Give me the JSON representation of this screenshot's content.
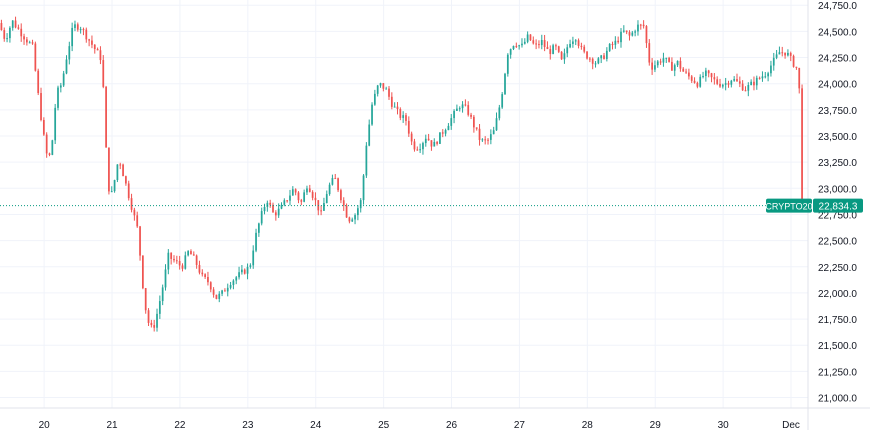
{
  "colors": {
    "up": "#26a69a",
    "down": "#ef5350",
    "grid": "#f0f3fa",
    "axis_text": "#131722",
    "price_line": "#089981",
    "tag_bg": "#089981",
    "tag_text": "#ffffff"
  },
  "chart_data": {
    "type": "candlestick",
    "symbol": "CRYPTO20",
    "last_price": 22834.3,
    "last_price_label": "22,834.3",
    "ylim": [
      20900,
      24800
    ],
    "y_ticks": [
      21000,
      21250,
      21500,
      21750,
      22000,
      22250,
      22500,
      22750,
      23000,
      23250,
      23500,
      23750,
      24000,
      24250,
      24500,
      24750
    ],
    "y_tick_labels": [
      "21,000.0",
      "21,250.0",
      "21,500.0",
      "21,750.0",
      "22,000.0",
      "22,250.0",
      "22,500.0",
      "22,750.0",
      "23,000.0",
      "23,250.0",
      "23,500.0",
      "23,750.0",
      "24,000.0",
      "24,250.0",
      "24,500.0",
      "24,750.0"
    ],
    "x_range": [
      19.35,
      31.25
    ],
    "x_ticks": [
      20,
      21,
      22,
      23,
      24,
      25,
      26,
      27,
      28,
      29,
      30,
      31
    ],
    "x_tick_labels": [
      "20",
      "21",
      "22",
      "23",
      "24",
      "25",
      "26",
      "27",
      "28",
      "29",
      "30",
      "Dec"
    ],
    "grid": true,
    "ohlc_keyframes": [
      [
        19.35,
        24580
      ],
      [
        19.45,
        24420
      ],
      [
        19.55,
        24600
      ],
      [
        19.7,
        24470
      ],
      [
        19.85,
        24350
      ],
      [
        19.95,
        23800
      ],
      [
        20.05,
        23330
      ],
      [
        20.12,
        23300
      ],
      [
        20.2,
        23900
      ],
      [
        20.28,
        24000
      ],
      [
        20.35,
        24250
      ],
      [
        20.45,
        24550
      ],
      [
        20.55,
        24550
      ],
      [
        20.65,
        24450
      ],
      [
        20.75,
        24350
      ],
      [
        20.85,
        24250
      ],
      [
        20.9,
        23900
      ],
      [
        20.95,
        23100
      ],
      [
        21.0,
        22900
      ],
      [
        21.05,
        23050
      ],
      [
        21.12,
        23300
      ],
      [
        21.2,
        23100
      ],
      [
        21.3,
        22850
      ],
      [
        21.4,
        22600
      ],
      [
        21.5,
        21900
      ],
      [
        21.58,
        21650
      ],
      [
        21.65,
        21700
      ],
      [
        21.75,
        22000
      ],
      [
        21.85,
        22350
      ],
      [
        21.95,
        22300
      ],
      [
        22.05,
        22250
      ],
      [
        22.15,
        22400
      ],
      [
        22.25,
        22300
      ],
      [
        22.35,
        22150
      ],
      [
        22.45,
        22100
      ],
      [
        22.55,
        21950
      ],
      [
        22.65,
        22000
      ],
      [
        22.75,
        22100
      ],
      [
        22.85,
        22150
      ],
      [
        22.95,
        22200
      ],
      [
        23.05,
        22250
      ],
      [
        23.12,
        22500
      ],
      [
        23.2,
        22700
      ],
      [
        23.3,
        22900
      ],
      [
        23.4,
        22750
      ],
      [
        23.5,
        22800
      ],
      [
        23.6,
        22900
      ],
      [
        23.7,
        23000
      ],
      [
        23.8,
        22850
      ],
      [
        23.9,
        23050
      ],
      [
        24.0,
        22900
      ],
      [
        24.1,
        22750
      ],
      [
        24.2,
        23000
      ],
      [
        24.3,
        23100
      ],
      [
        24.4,
        22900
      ],
      [
        24.5,
        22700
      ],
      [
        24.6,
        22750
      ],
      [
        24.7,
        22900
      ],
      [
        24.75,
        23350
      ],
      [
        24.85,
        23800
      ],
      [
        24.95,
        24000
      ],
      [
        25.05,
        23950
      ],
      [
        25.15,
        23800
      ],
      [
        25.25,
        23700
      ],
      [
        25.35,
        23650
      ],
      [
        25.45,
        23400
      ],
      [
        25.55,
        23400
      ],
      [
        25.65,
        23500
      ],
      [
        25.75,
        23400
      ],
      [
        25.85,
        23500
      ],
      [
        25.95,
        23600
      ],
      [
        26.05,
        23700
      ],
      [
        26.15,
        23800
      ],
      [
        26.25,
        23750
      ],
      [
        26.35,
        23600
      ],
      [
        26.45,
        23450
      ],
      [
        26.55,
        23450
      ],
      [
        26.65,
        23550
      ],
      [
        26.75,
        23850
      ],
      [
        26.85,
        24300
      ],
      [
        26.95,
        24400
      ],
      [
        27.05,
        24350
      ],
      [
        27.15,
        24450
      ],
      [
        27.25,
        24350
      ],
      [
        27.35,
        24400
      ],
      [
        27.45,
        24300
      ],
      [
        27.55,
        24350
      ],
      [
        27.65,
        24200
      ],
      [
        27.75,
        24400
      ],
      [
        27.85,
        24450
      ],
      [
        27.95,
        24300
      ],
      [
        28.05,
        24250
      ],
      [
        28.15,
        24200
      ],
      [
        28.25,
        24250
      ],
      [
        28.35,
        24350
      ],
      [
        28.45,
        24400
      ],
      [
        28.55,
        24500
      ],
      [
        28.65,
        24450
      ],
      [
        28.75,
        24550
      ],
      [
        28.85,
        24550
      ],
      [
        28.95,
        24150
      ],
      [
        29.05,
        24200
      ],
      [
        29.15,
        24250
      ],
      [
        29.25,
        24150
      ],
      [
        29.35,
        24200
      ],
      [
        29.45,
        24100
      ],
      [
        29.55,
        24050
      ],
      [
        29.65,
        24000
      ],
      [
        29.75,
        24100
      ],
      [
        29.85,
        24050
      ],
      [
        29.95,
        24000
      ],
      [
        30.05,
        24000
      ],
      [
        30.15,
        24050
      ],
      [
        30.25,
        24000
      ],
      [
        30.35,
        23950
      ],
      [
        30.45,
        24000
      ],
      [
        30.55,
        24050
      ],
      [
        30.65,
        24100
      ],
      [
        30.75,
        24200
      ],
      [
        30.85,
        24300
      ],
      [
        30.95,
        24300
      ],
      [
        31.05,
        24200
      ],
      [
        31.1,
        24150
      ],
      [
        31.15,
        23900
      ],
      [
        31.2,
        22834
      ]
    ]
  }
}
